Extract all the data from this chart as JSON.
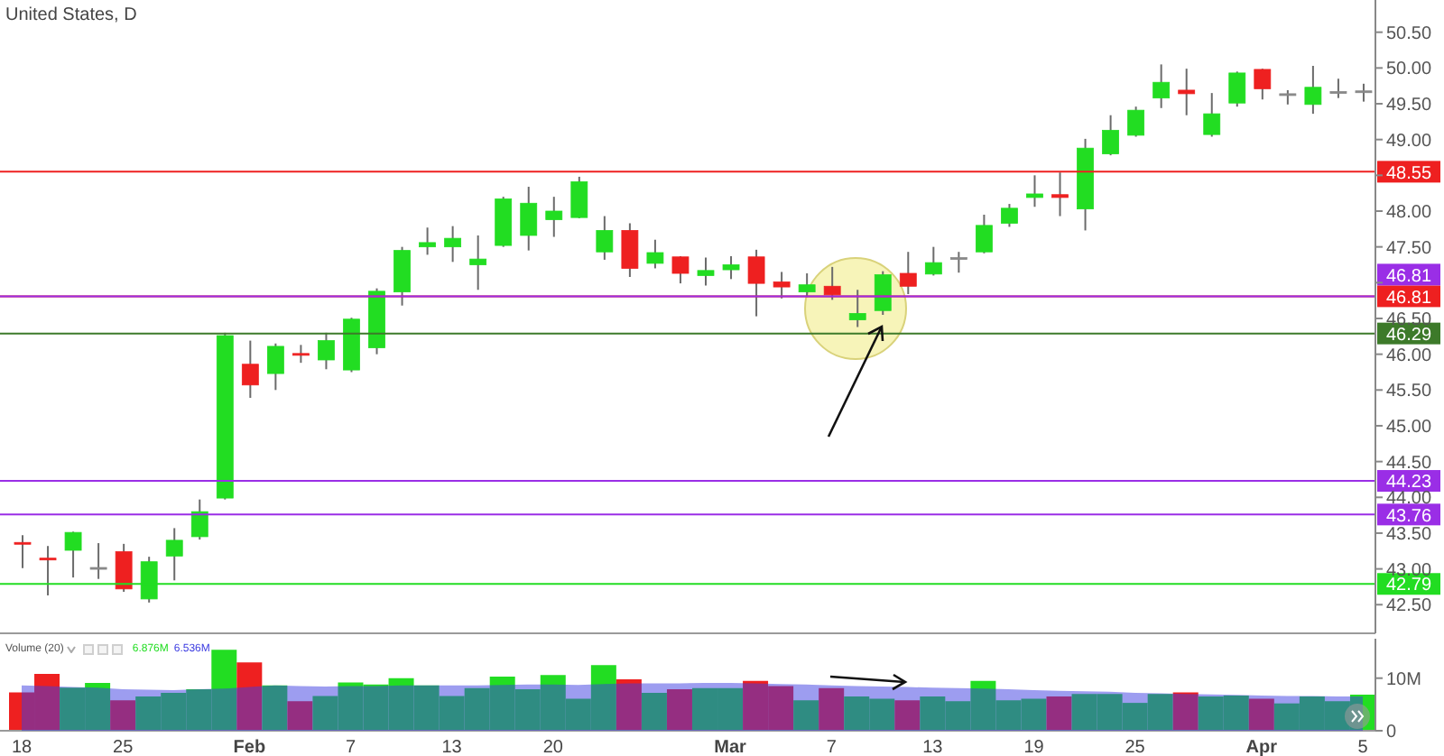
{
  "chart_data": [
    {
      "type": "candlestick",
      "title": "United States, D",
      "categories": [
        null,
        null,
        null,
        null,
        null,
        null,
        null,
        null,
        null,
        null,
        null,
        null,
        null,
        null,
        null,
        null,
        null,
        null,
        null,
        null,
        null,
        null,
        null,
        null,
        null,
        null,
        null,
        null,
        null,
        null,
        null,
        null,
        null,
        null,
        null,
        null,
        null,
        null,
        null,
        null,
        null,
        null,
        null,
        null,
        null,
        null,
        null,
        null,
        null,
        null,
        null,
        null,
        null,
        null
      ],
      "ohlc": [
        [
          43.37,
          43.47,
          43.01,
          43.35
        ],
        [
          43.15,
          43.32,
          42.63,
          43.13
        ],
        [
          43.26,
          43.52,
          42.88,
          43.51
        ],
        [
          43.02,
          43.36,
          42.86,
          43.02
        ],
        [
          43.24,
          43.35,
          42.68,
          42.72
        ],
        [
          42.58,
          43.17,
          42.53,
          43.1
        ],
        [
          43.18,
          43.57,
          42.84,
          43.4
        ],
        [
          43.45,
          43.97,
          43.41,
          43.8
        ],
        [
          43.99,
          46.3,
          43.97,
          46.26
        ],
        [
          45.86,
          46.19,
          45.39,
          45.57
        ],
        [
          45.73,
          46.15,
          45.5,
          46.11
        ],
        [
          46.01,
          46.13,
          45.88,
          46.0
        ],
        [
          45.92,
          46.3,
          45.79,
          46.19
        ],
        [
          45.78,
          46.51,
          45.75,
          46.49
        ],
        [
          46.09,
          46.92,
          46.0,
          46.88
        ],
        [
          46.87,
          47.5,
          46.68,
          47.45
        ],
        [
          47.5,
          47.77,
          47.39,
          47.56
        ],
        [
          47.5,
          47.79,
          47.29,
          47.62
        ],
        [
          47.25,
          47.66,
          46.9,
          47.33
        ],
        [
          47.52,
          48.2,
          47.5,
          48.17
        ],
        [
          47.66,
          48.34,
          47.45,
          48.11
        ],
        [
          47.88,
          48.2,
          47.64,
          48.0
        ],
        [
          47.91,
          48.48,
          47.9,
          48.41
        ],
        [
          47.43,
          47.93,
          47.32,
          47.73
        ],
        [
          47.73,
          47.83,
          47.08,
          47.2
        ],
        [
          47.27,
          47.6,
          47.2,
          47.42
        ],
        [
          47.36,
          47.37,
          46.99,
          47.13
        ],
        [
          47.1,
          47.35,
          46.96,
          47.17
        ],
        [
          47.18,
          47.37,
          47.05,
          47.25
        ],
        [
          47.36,
          47.46,
          46.53,
          46.99
        ],
        [
          47.01,
          47.15,
          46.78,
          46.94
        ],
        [
          46.87,
          47.13,
          46.8,
          46.97
        ],
        [
          46.95,
          47.22,
          46.76,
          46.83
        ],
        [
          46.48,
          46.9,
          46.38,
          46.57
        ],
        [
          46.61,
          47.16,
          46.55,
          47.11
        ],
        [
          47.13,
          47.43,
          46.84,
          46.95
        ],
        [
          47.12,
          47.5,
          47.1,
          47.28
        ],
        [
          47.35,
          47.43,
          47.14,
          47.35
        ],
        [
          47.43,
          47.95,
          47.41,
          47.8
        ],
        [
          47.83,
          48.1,
          47.78,
          48.04
        ],
        [
          48.19,
          48.5,
          48.06,
          48.24
        ],
        [
          48.23,
          48.54,
          47.93,
          48.19
        ],
        [
          48.03,
          49.01,
          47.73,
          48.88
        ],
        [
          48.8,
          49.34,
          48.78,
          49.13
        ],
        [
          49.06,
          49.46,
          49.04,
          49.41
        ],
        [
          49.58,
          50.05,
          49.44,
          49.8
        ],
        [
          49.69,
          49.99,
          49.34,
          49.64
        ],
        [
          49.07,
          49.65,
          49.04,
          49.36
        ],
        [
          49.51,
          49.95,
          49.46,
          49.93
        ],
        [
          49.98,
          49.99,
          49.56,
          49.71
        ],
        [
          49.64,
          49.69,
          49.49,
          49.64
        ],
        [
          49.49,
          50.03,
          49.36,
          49.73
        ],
        [
          49.67,
          49.85,
          49.58,
          49.67
        ],
        [
          49.68,
          49.78,
          49.53,
          49.68
        ]
      ],
      "colors": [
        "#ee2020",
        "#ee2020",
        "#22dd22",
        "#888888",
        "#ee2020",
        "#22dd22",
        "#22dd22",
        "#22dd22",
        "#22dd22",
        "#ee2020",
        "#22dd22",
        "#ee2020",
        "#22dd22",
        "#22dd22",
        "#22dd22",
        "#22dd22",
        "#22dd22",
        "#22dd22",
        "#22dd22",
        "#22dd22",
        "#22dd22",
        "#22dd22",
        "#22dd22",
        "#22dd22",
        "#ee2020",
        "#22dd22",
        "#ee2020",
        "#22dd22",
        "#22dd22",
        "#ee2020",
        "#ee2020",
        "#22dd22",
        "#ee2020",
        "#22dd22",
        "#22dd22",
        "#ee2020",
        "#22dd22",
        "#888888",
        "#22dd22",
        "#22dd22",
        "#22dd22",
        "#ee2020",
        "#22dd22",
        "#22dd22",
        "#22dd22",
        "#22dd22",
        "#ee2020",
        "#22dd22",
        "#22dd22",
        "#ee2020",
        "#888888",
        "#22dd22",
        "#888888",
        "#888888"
      ],
      "ylim": [
        42.1,
        50.95
      ],
      "yticks": [
        {
          "value": 42.5,
          "label": "42.50"
        },
        {
          "value": 43,
          "label": "43.00"
        },
        {
          "value": 43.5,
          "label": "43.50"
        },
        {
          "value": 44,
          "label": "44.00"
        },
        {
          "value": 44.5,
          "label": "44.50"
        },
        {
          "value": 45,
          "label": "45.00"
        },
        {
          "value": 45.5,
          "label": "45.50"
        },
        {
          "value": 46,
          "label": "46.00"
        },
        {
          "value": 46.5,
          "label": "46.50"
        },
        {
          "value": 47,
          "label": null
        },
        {
          "value": 47.5,
          "label": "47.50"
        },
        {
          "value": 48,
          "label": "48.00"
        },
        {
          "value": 48.5,
          "label": null
        },
        {
          "value": 49,
          "label": "49.00"
        },
        {
          "value": 49.5,
          "label": "49.50"
        },
        {
          "value": 50,
          "label": "50.00"
        },
        {
          "value": 50.5,
          "label": "50.50"
        }
      ],
      "ref_lines": [
        {
          "axis": "y",
          "value": 48.55,
          "label": "48.55",
          "color": "#ee2020"
        },
        {
          "axis": "y",
          "value": 46.81,
          "label": "46.81",
          "color": "#ee2020"
        },
        {
          "axis": "y",
          "value": 46.81,
          "label": "46.81",
          "color": "#9a2ee6"
        },
        {
          "axis": "y",
          "value": 46.29,
          "label": "46.29",
          "color": "#3d7a2a"
        },
        {
          "axis": "y",
          "value": 44.23,
          "label": "44.23",
          "color": "#9a2ee6"
        },
        {
          "axis": "y",
          "value": 43.76,
          "label": "43.76",
          "color": "#9a2ee6"
        },
        {
          "axis": "y",
          "value": 42.79,
          "label": "42.79",
          "color": "#22dd22"
        }
      ]
    },
    {
      "type": "bar",
      "title": "Volume (20)",
      "categories": [
        "18",
        null,
        null,
        null,
        "25",
        null,
        null,
        null,
        null,
        "Feb",
        null,
        null,
        null,
        "7",
        null,
        null,
        null,
        "13",
        null,
        null,
        null,
        "20",
        null,
        null,
        null,
        null,
        null,
        null,
        "Mar",
        null,
        null,
        null,
        "7",
        null,
        null,
        null,
        "13",
        null,
        null,
        null,
        "19",
        null,
        null,
        null,
        "25",
        null,
        null,
        null,
        null,
        "Apr",
        null,
        null,
        null,
        "5"
      ],
      "series": [
        {
          "type": "bar",
          "colors": [
            "#ee2020",
            "#ee2020",
            "#22dd22",
            "#22dd22",
            "#ee2020",
            "#22dd22",
            "#22dd22",
            "#22dd22",
            "#22dd22",
            "#ee2020",
            "#22dd22",
            "#ee2020",
            "#22dd22",
            "#22dd22",
            "#22dd22",
            "#22dd22",
            "#22dd22",
            "#22dd22",
            "#22dd22",
            "#22dd22",
            "#22dd22",
            "#22dd22",
            "#22dd22",
            "#22dd22",
            "#ee2020",
            "#22dd22",
            "#ee2020",
            "#22dd22",
            "#22dd22",
            "#ee2020",
            "#ee2020",
            "#22dd22",
            "#ee2020",
            "#22dd22",
            "#22dd22",
            "#ee2020",
            "#22dd22",
            "#22dd22",
            "#22dd22",
            "#22dd22",
            "#22dd22",
            "#ee2020",
            "#22dd22",
            "#22dd22",
            "#22dd22",
            "#22dd22",
            "#ee2020",
            "#22dd22",
            "#22dd22",
            "#ee2020",
            "#22dd22",
            "#22dd22",
            "#22dd22",
            "#22dd22"
          ],
          "values": [
            7.3,
            10.8,
            8.2,
            9.1,
            5.8,
            6.5,
            7.2,
            7.9,
            15.4,
            13.0,
            8.6,
            5.6,
            6.6,
            9.2,
            8.8,
            10.0,
            8.6,
            6.6,
            8.1,
            10.3,
            7.9,
            10.6,
            6.1,
            12.5,
            9.8,
            7.2,
            7.9,
            8.1,
            8.1,
            9.5,
            8.5,
            5.8,
            8.1,
            6.5,
            6.1,
            5.8,
            6.5,
            5.6,
            9.5,
            5.8,
            6.1,
            6.5,
            7.0,
            7.0,
            5.3,
            7.0,
            7.3,
            6.5,
            6.7,
            6.1,
            5.2,
            6.5,
            5.6,
            6.876
          ]
        },
        {
          "type": "area",
          "color": "#3c3ce1",
          "values": [
            8.6,
            8.5,
            8.3,
            8.2,
            7.9,
            7.8,
            7.7,
            7.9,
            8.0,
            8.3,
            8.6,
            8.5,
            8.4,
            8.5,
            8.5,
            8.6,
            8.6,
            8.6,
            8.6,
            8.7,
            8.8,
            8.8,
            8.7,
            8.9,
            9.0,
            9.0,
            9.0,
            9.1,
            9.1,
            9.0,
            8.9,
            8.8,
            8.6,
            8.5,
            8.4,
            8.3,
            8.2,
            8.1,
            8.0,
            7.9,
            7.7,
            7.6,
            7.5,
            7.4,
            7.2,
            7.1,
            7.0,
            6.9,
            6.8,
            6.7,
            6.6,
            6.6,
            6.5,
            6.536
          ]
        }
      ],
      "ylim": [
        0,
        17.5
      ],
      "yticks": [
        {
          "value": 10,
          "label": "10M"
        },
        0
      ],
      "annotations": [
        "6.876M",
        "6.536M"
      ]
    }
  ]
}
